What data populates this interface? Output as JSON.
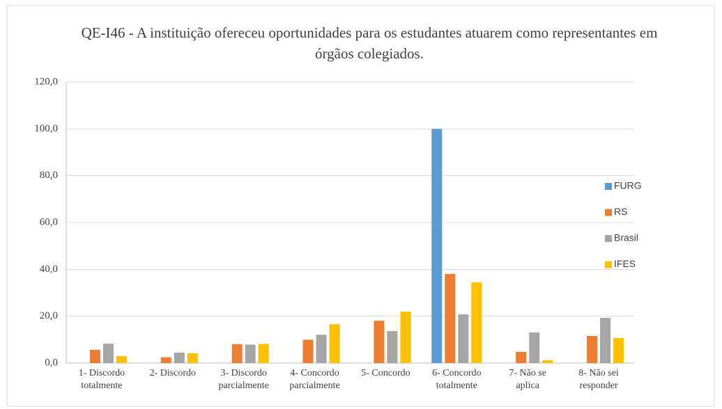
{
  "chart_data": {
    "type": "bar",
    "title": "QE-I46 - A instituição ofereceu oportunidades para os estudantes atuarem como representantes em órgãos colegiados.",
    "categories": [
      "1- Discordo\ntotalmente",
      "2- Discordo",
      "3- Discordo\nparcialmente",
      "4- Concordo\nparcialmente",
      "5- Concordo",
      "6- Concordo\ntotalmente",
      "7- Não se\naplica",
      "8- Não sei\nresponder"
    ],
    "series": [
      {
        "name": "FURG",
        "color": "#5b9bd5",
        "values": [
          0,
          0,
          0,
          0,
          0,
          100,
          0,
          0
        ]
      },
      {
        "name": "RS",
        "color": "#ed7d31",
        "values": [
          5.7,
          2.5,
          8.1,
          10.0,
          18.1,
          38.1,
          4.8,
          11.6
        ]
      },
      {
        "name": "Brasil",
        "color": "#a5a5a5",
        "values": [
          8.3,
          4.5,
          7.9,
          12.1,
          13.7,
          20.8,
          13.1,
          19.3
        ]
      },
      {
        "name": "IFES",
        "color": "#ffc000",
        "values": [
          3.0,
          4.2,
          8.2,
          16.6,
          22.0,
          34.5,
          1.2,
          10.7
        ]
      }
    ],
    "ylim": [
      0,
      120
    ],
    "yticks": [
      {
        "value": 0,
        "label": "0,0"
      },
      {
        "value": 20,
        "label": "20,0"
      },
      {
        "value": 40,
        "label": "40,0"
      },
      {
        "value": 60,
        "label": "60,0"
      },
      {
        "value": 80,
        "label": "80,0"
      },
      {
        "value": 100,
        "label": "100,0"
      },
      {
        "value": 120,
        "label": "120,0"
      }
    ],
    "grid": true,
    "legend": "right"
  }
}
